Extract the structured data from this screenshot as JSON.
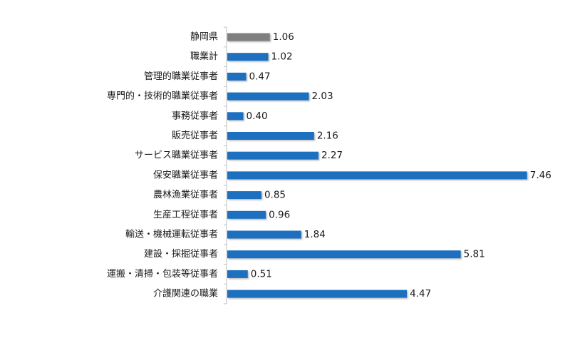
{
  "chart_data": {
    "type": "bar",
    "orientation": "horizontal",
    "categories": [
      "静岡県",
      "職業計",
      "管理的職業従事者",
      "専門的・技術的職業従事者",
      "事務従事者",
      "販売従事者",
      "サービス職業従事者",
      "保安職業従事者",
      "農林漁業従事者",
      "生産工程従事者",
      "輸送・機械運転従事者",
      "建設・採掘従事者",
      "運搬・清掃・包装等従事者",
      "介護関連の職業"
    ],
    "values": [
      1.06,
      1.02,
      0.47,
      2.03,
      0.4,
      2.16,
      2.27,
      7.46,
      0.85,
      0.96,
      1.84,
      5.81,
      0.51,
      4.47
    ],
    "value_labels": [
      "1.06",
      "1.02",
      "0.47",
      "2.03",
      "0.40",
      "2.16",
      "2.27",
      "7.46",
      "0.85",
      "0.96",
      "1.84",
      "5.81",
      "0.51",
      "4.47"
    ],
    "bar_colors": [
      "#7f7f7f",
      "#1f6fbf",
      "#1f6fbf",
      "#1f6fbf",
      "#1f6fbf",
      "#1f6fbf",
      "#1f6fbf",
      "#1f6fbf",
      "#1f6fbf",
      "#1f6fbf",
      "#1f6fbf",
      "#1f6fbf",
      "#1f6fbf",
      "#1f6fbf"
    ],
    "xlim": [
      0,
      7.46
    ],
    "title": "",
    "xlabel": "",
    "ylabel": "",
    "grid": false,
    "axis_color": "#bfbfbf"
  }
}
